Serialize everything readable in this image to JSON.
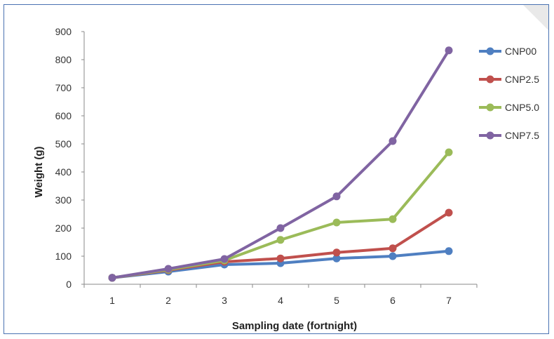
{
  "chart_data": {
    "type": "line",
    "title": "",
    "xlabel": "Sampling date (fortnight)",
    "ylabel": "Weight (g)",
    "x": [
      1,
      2,
      3,
      4,
      5,
      6,
      7
    ],
    "ylim": [
      0,
      900
    ],
    "yticks": [
      0,
      100,
      200,
      300,
      400,
      500,
      600,
      700,
      800,
      900
    ],
    "grid": false,
    "legend_position": "right",
    "series": [
      {
        "name": "CNP00",
        "color": "#4f7fc1",
        "values": [
          23,
          45,
          70,
          75,
          92,
          100,
          118
        ]
      },
      {
        "name": "CNP2.5",
        "color": "#c0504d",
        "values": [
          23,
          50,
          80,
          92,
          113,
          128,
          255
        ]
      },
      {
        "name": "CNP5.0",
        "color": "#9bbb59",
        "values": [
          23,
          52,
          85,
          158,
          220,
          232,
          470
        ]
      },
      {
        "name": "CNP7.5",
        "color": "#8064a2",
        "values": [
          23,
          55,
          90,
          200,
          313,
          510,
          833
        ]
      }
    ]
  }
}
